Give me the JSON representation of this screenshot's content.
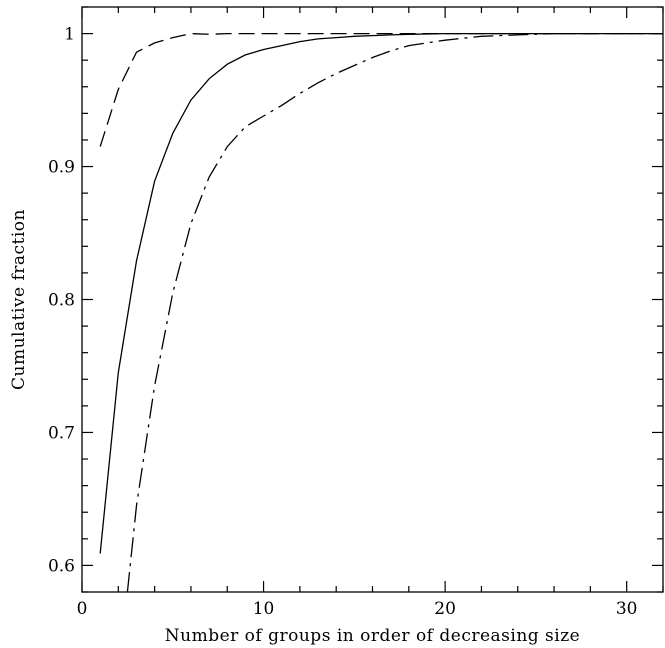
{
  "chart_data": {
    "type": "line",
    "xlabel": "Number of groups in order of decreasing size",
    "ylabel": "Cumulative fraction",
    "xlim": [
      0,
      32
    ],
    "ylim": [
      0.58,
      1.02
    ],
    "x_ticks": [
      0,
      10,
      20,
      30
    ],
    "x_tick_labels": [
      "0",
      "10",
      "20",
      "30"
    ],
    "y_ticks": [
      0.6,
      0.7,
      0.8,
      0.9,
      1.0
    ],
    "y_tick_labels": [
      "0.6",
      "0.7",
      "0.8",
      "0.9",
      "1"
    ],
    "grid": false,
    "series": [
      {
        "style": "long-dash",
        "x": [
          1,
          2,
          3,
          4,
          5,
          6,
          7,
          8,
          9,
          10,
          12,
          14,
          16,
          18,
          20,
          25,
          32
        ],
        "y": [
          0.915,
          0.958,
          0.986,
          0.993,
          0.997,
          1.0,
          0.9995,
          1.0,
          1.0,
          1.0,
          1.0,
          1.0,
          1.0,
          1.0,
          1.0,
          1.0,
          1.0
        ]
      },
      {
        "style": "solid",
        "x": [
          1,
          2,
          3,
          4,
          5,
          6,
          7,
          8,
          9,
          10,
          11,
          12,
          13,
          14,
          15,
          16,
          17,
          18,
          20,
          22,
          25,
          32
        ],
        "y": [
          0.609,
          0.745,
          0.829,
          0.889,
          0.925,
          0.95,
          0.966,
          0.977,
          0.984,
          0.988,
          0.991,
          0.994,
          0.996,
          0.997,
          0.998,
          0.9985,
          0.999,
          0.9995,
          1.0,
          1.0,
          1.0,
          1.0
        ]
      },
      {
        "style": "dash-dot",
        "x": [
          2.5,
          3,
          4,
          5,
          6,
          7,
          8,
          9,
          10,
          11,
          12,
          13,
          14,
          15,
          16,
          17,
          18,
          20,
          22,
          24,
          26,
          28,
          32
        ],
        "y": [
          0.58,
          0.645,
          0.735,
          0.805,
          0.857,
          0.892,
          0.915,
          0.93,
          0.938,
          0.946,
          0.955,
          0.963,
          0.97,
          0.976,
          0.982,
          0.987,
          0.991,
          0.995,
          0.998,
          0.999,
          1.0,
          1.0,
          1.0
        ]
      }
    ]
  }
}
